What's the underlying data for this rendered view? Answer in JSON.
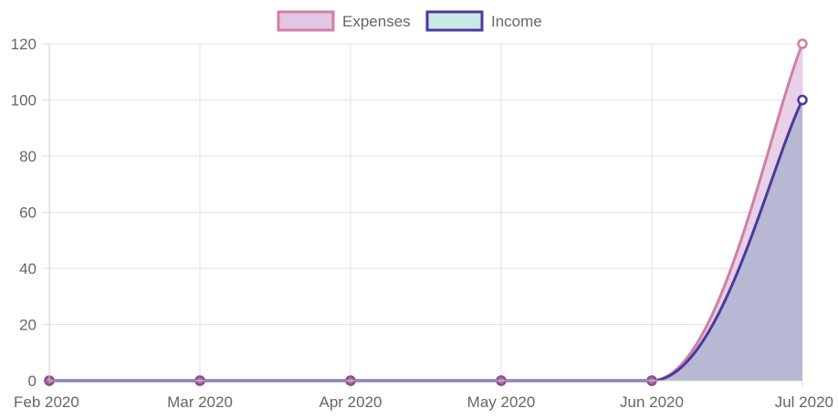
{
  "chart_data": {
    "type": "area",
    "x": [
      "Feb 2020",
      "Mar 2020",
      "Apr 2020",
      "May 2020",
      "Jun 2020",
      "Jul 2020"
    ],
    "series": [
      {
        "name": "Expenses",
        "values": [
          0,
          0,
          0,
          0,
          0,
          120
        ],
        "line_color": "#d07fa6",
        "fill_color": "#e4c8e3",
        "legend_fill": "#e2c6e3"
      },
      {
        "name": "Income",
        "values": [
          0,
          0,
          0,
          0,
          0,
          100
        ],
        "line_color": "#4a3a9e",
        "fill_color": "#b5b5d3",
        "legend_fill": "#c9e9e7"
      }
    ],
    "ylim": [
      0,
      120
    ],
    "yticks": [
      0,
      20,
      40,
      60,
      80,
      100,
      120
    ],
    "grid": true,
    "legend_position": "top-center",
    "title": "",
    "xlabel": "",
    "ylabel": ""
  }
}
